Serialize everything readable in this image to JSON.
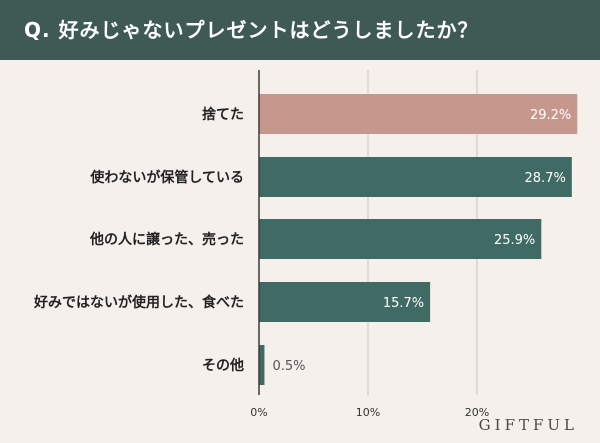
{
  "header": {
    "title": "Q. 好みじゃないプレゼントはどうしましたか？"
  },
  "brand": "GIFTFUL",
  "colors": {
    "highlight": "#c6978d",
    "bar": "#3f6b64",
    "grid": "#c9c2bd",
    "axis": "#3a3a3a"
  },
  "chart_data": {
    "type": "bar",
    "orientation": "horizontal",
    "categories": [
      "捨てた",
      "使わないが保管している",
      "他の人に譲った、売った",
      "好みではないが使用した、食べた",
      "その他"
    ],
    "values": [
      29.2,
      28.7,
      25.9,
      15.7,
      0.5
    ],
    "value_labels": [
      "29.2%",
      "28.7%",
      "25.9%",
      "15.7%",
      "0.5%"
    ],
    "ticks": [
      "0%",
      "10%",
      "20%"
    ],
    "xlim": [
      0,
      31
    ],
    "grid": true,
    "highlight_index": 0
  }
}
